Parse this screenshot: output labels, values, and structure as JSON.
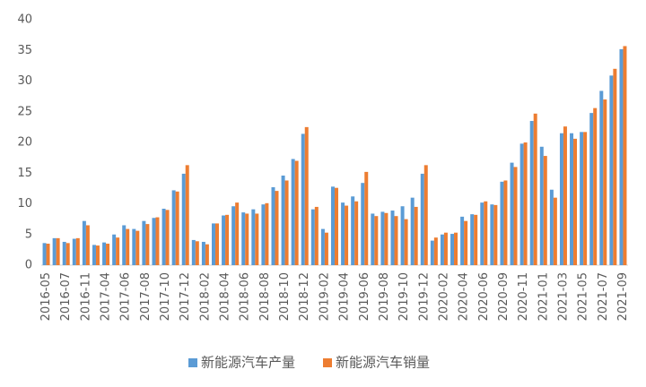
{
  "chart_data": {
    "type": "bar",
    "categories": [
      "2016-05",
      null,
      "2016-07",
      null,
      "2016-11",
      null,
      "2017-04",
      null,
      "2017-06",
      null,
      "2017-08",
      null,
      "2017-10",
      null,
      "2017-12",
      null,
      "2018-02",
      null,
      "2018-04",
      null,
      "2018-06",
      null,
      "2018-08",
      null,
      "2018-10",
      null,
      "2018-12",
      null,
      "2019-02",
      null,
      "2019-04",
      null,
      "2019-06",
      null,
      "2019-08",
      null,
      "2019-10",
      null,
      "2019-12",
      null,
      "2020-02",
      null,
      "2020-04",
      null,
      "2020-06",
      null,
      "2020-09",
      null,
      "2020-11",
      null,
      "2021-01",
      null,
      "2021-03",
      null,
      "2021-05",
      null,
      "2021-07",
      null,
      "2021-09"
    ],
    "series": [
      {
        "name": "新能源汽车产量",
        "color": "#5b9bd5",
        "values": [
          3.6,
          4.4,
          3.8,
          4.3,
          7.2,
          3.3,
          3.7,
          5.0,
          6.5,
          5.9,
          7.2,
          7.7,
          9.2,
          12.2,
          14.9,
          4.1,
          3.8,
          6.8,
          8.1,
          9.6,
          8.6,
          9.1,
          9.9,
          12.7,
          14.6,
          17.3,
          21.4,
          9.1,
          5.9,
          12.8,
          10.2,
          11.2,
          13.4,
          8.4,
          8.7,
          8.9,
          9.6,
          11.0,
          14.9,
          4.0,
          5.0,
          5.1,
          7.9,
          8.3,
          10.2,
          9.9,
          13.6,
          16.7,
          19.8,
          23.5,
          19.3,
          12.3,
          21.5,
          21.5,
          21.7,
          24.8,
          28.4,
          30.9,
          35.2
        ]
      },
      {
        "name": "新能源汽车销量",
        "color": "#ed7d31",
        "values": [
          3.5,
          4.4,
          3.6,
          4.4,
          6.5,
          3.2,
          3.5,
          4.5,
          5.9,
          5.6,
          6.7,
          7.8,
          9.0,
          12.0,
          16.3,
          3.9,
          3.4,
          6.8,
          8.2,
          10.2,
          8.4,
          8.4,
          10.1,
          12.1,
          13.8,
          17.0,
          22.5,
          9.5,
          5.3,
          12.6,
          9.7,
          10.4,
          15.2,
          8.0,
          8.5,
          8.0,
          7.5,
          9.5,
          16.3,
          4.5,
          5.3,
          5.3,
          7.2,
          8.2,
          10.4,
          9.8,
          13.8,
          16.0,
          20.0,
          24.7,
          17.8,
          11.0,
          22.6,
          20.6,
          21.7,
          25.6,
          27.0,
          32.0,
          35.7
        ]
      }
    ],
    "ylim": [
      0,
      40
    ],
    "yticks": [
      0,
      5,
      10,
      15,
      20,
      25,
      30,
      35,
      40
    ],
    "grid": false,
    "legend": "bottom"
  }
}
